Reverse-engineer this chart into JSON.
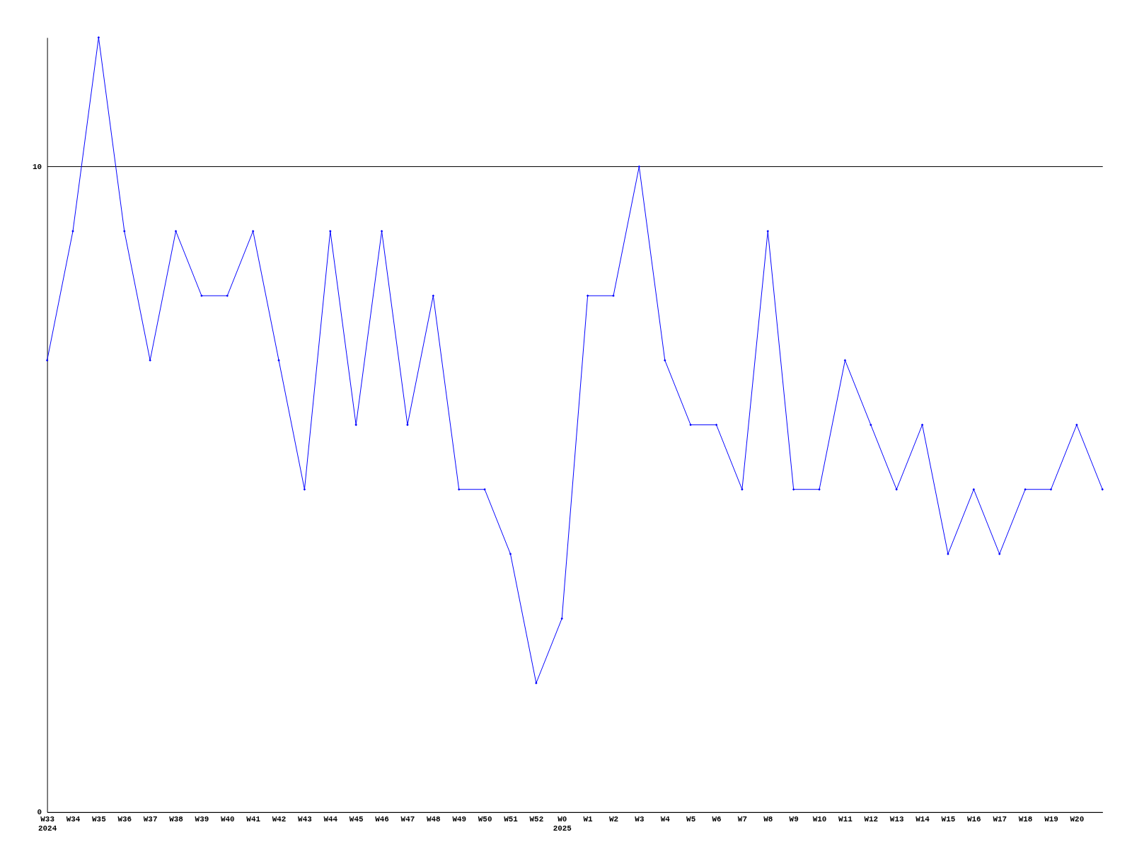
{
  "chart_data": {
    "type": "line",
    "categories": [
      "W33\n2024",
      "W34",
      "W35",
      "W36",
      "W37",
      "W38",
      "W39",
      "W40",
      "W41",
      "W42",
      "W43",
      "W44",
      "W45",
      "W46",
      "W47",
      "W48",
      "W49",
      "W50",
      "W51",
      "W52",
      "W0\n2025",
      "W1",
      "W2",
      "W3",
      "W4",
      "W5",
      "W6",
      "W7",
      "W8",
      "W9",
      "W10",
      "W11",
      "W12",
      "W13",
      "W14",
      "W15",
      "W16",
      "W17",
      "W18",
      "W19",
      "W20",
      null
    ],
    "series": [
      {
        "color": "#0000ff",
        "values": [
          7,
          9,
          12,
          9,
          7,
          9,
          8,
          8,
          9,
          7,
          5,
          9,
          6,
          9,
          6,
          8,
          5,
          5,
          4,
          2,
          3,
          8,
          8,
          10,
          7,
          6,
          6,
          5,
          9,
          5,
          5,
          7,
          6,
          5,
          6,
          4,
          5,
          4,
          5,
          5,
          6,
          5
        ]
      }
    ],
    "ylim": [
      0,
      12
    ],
    "yticks": [
      0,
      10
    ],
    "grid": "y",
    "marker": "diamond",
    "line_style": "solid"
  }
}
